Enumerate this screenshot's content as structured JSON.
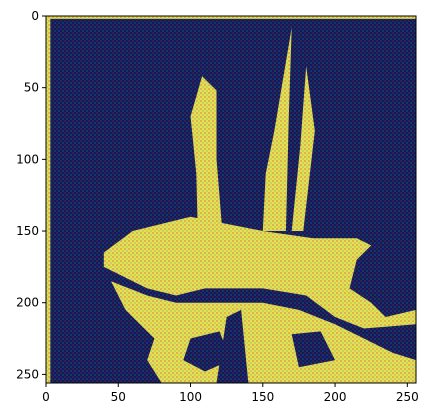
{
  "chart_data": {
    "type": "heatmap",
    "title": "",
    "xlabel": "",
    "ylabel": "",
    "xlim": [
      0,
      256
    ],
    "ylim": [
      256,
      0
    ],
    "x_ticks": [
      0,
      50,
      100,
      150,
      200,
      250
    ],
    "y_ticks": [
      0,
      50,
      100,
      150,
      200,
      250
    ],
    "grid": false,
    "legend": "none",
    "colors": {
      "background": "#0f1a5a",
      "foreground": "#e8e050",
      "accent_red": "#b03040",
      "accent_teal": "#30a0a0",
      "axis": "#000000"
    },
    "image_regions": {
      "description_shapes": [
        {
          "kind": "left-border-stripe",
          "x": [
            0,
            3
          ],
          "y": [
            0,
            256
          ]
        },
        {
          "kind": "top-border-stripe",
          "x": [
            0,
            256
          ],
          "y": [
            0,
            2
          ]
        },
        {
          "kind": "mast-left",
          "points": [
            [
              108,
              42
            ],
            [
              118,
              52
            ],
            [
              118,
              100
            ],
            [
              122,
              150
            ],
            [
              105,
              150
            ],
            [
              104,
              110
            ],
            [
              100,
              70
            ]
          ]
        },
        {
          "kind": "mast-middle",
          "points": [
            [
              170,
              8
            ],
            [
              168,
              70
            ],
            [
              166,
              150
            ],
            [
              150,
              150
            ],
            [
              152,
              110
            ],
            [
              158,
              80
            ]
          ]
        },
        {
          "kind": "mast-right-tip",
          "points": [
            [
              180,
              35
            ],
            [
              186,
              80
            ],
            [
              178,
              150
            ],
            [
              170,
              150
            ],
            [
              176,
              90
            ]
          ]
        },
        {
          "kind": "hull-upper",
          "points": [
            [
              40,
              165
            ],
            [
              60,
              150
            ],
            [
              100,
              140
            ],
            [
              150,
              150
            ],
            [
              185,
              155
            ],
            [
              215,
              155
            ],
            [
              225,
              160
            ],
            [
              215,
              170
            ],
            [
              210,
              190
            ],
            [
              225,
              200
            ],
            [
              235,
              210
            ],
            [
              256,
              205
            ],
            [
              256,
              215
            ],
            [
              220,
              218
            ],
            [
              200,
              210
            ],
            [
              180,
              195
            ],
            [
              150,
              190
            ],
            [
              110,
              190
            ],
            [
              90,
              195
            ],
            [
              70,
              190
            ],
            [
              50,
              180
            ],
            [
              40,
              175
            ]
          ]
        },
        {
          "kind": "hull-lower",
          "points": [
            [
              45,
              185
            ],
            [
              70,
              195
            ],
            [
              90,
              200
            ],
            [
              120,
              200
            ],
            [
              150,
              200
            ],
            [
              175,
              205
            ],
            [
              200,
              215
            ],
            [
              220,
              225
            ],
            [
              240,
              235
            ],
            [
              256,
              240
            ],
            [
              256,
              256
            ],
            [
              80,
              256
            ],
            [
              70,
              240
            ],
            [
              75,
              225
            ],
            [
              65,
              215
            ],
            [
              55,
              205
            ]
          ]
        },
        {
          "kind": "dark-notch-left",
          "points": [
            [
              100,
              225
            ],
            [
              120,
              220
            ],
            [
              128,
              240
            ],
            [
              110,
              248
            ],
            [
              95,
              240
            ]
          ]
        },
        {
          "kind": "dark-notch-mid",
          "points": [
            [
              125,
              210
            ],
            [
              135,
              205
            ],
            [
              140,
              256
            ],
            [
              118,
              256
            ]
          ]
        },
        {
          "kind": "dark-notch-right",
          "points": [
            [
              170,
              222
            ],
            [
              190,
              220
            ],
            [
              200,
              240
            ],
            [
              175,
              245
            ]
          ]
        }
      ]
    }
  }
}
